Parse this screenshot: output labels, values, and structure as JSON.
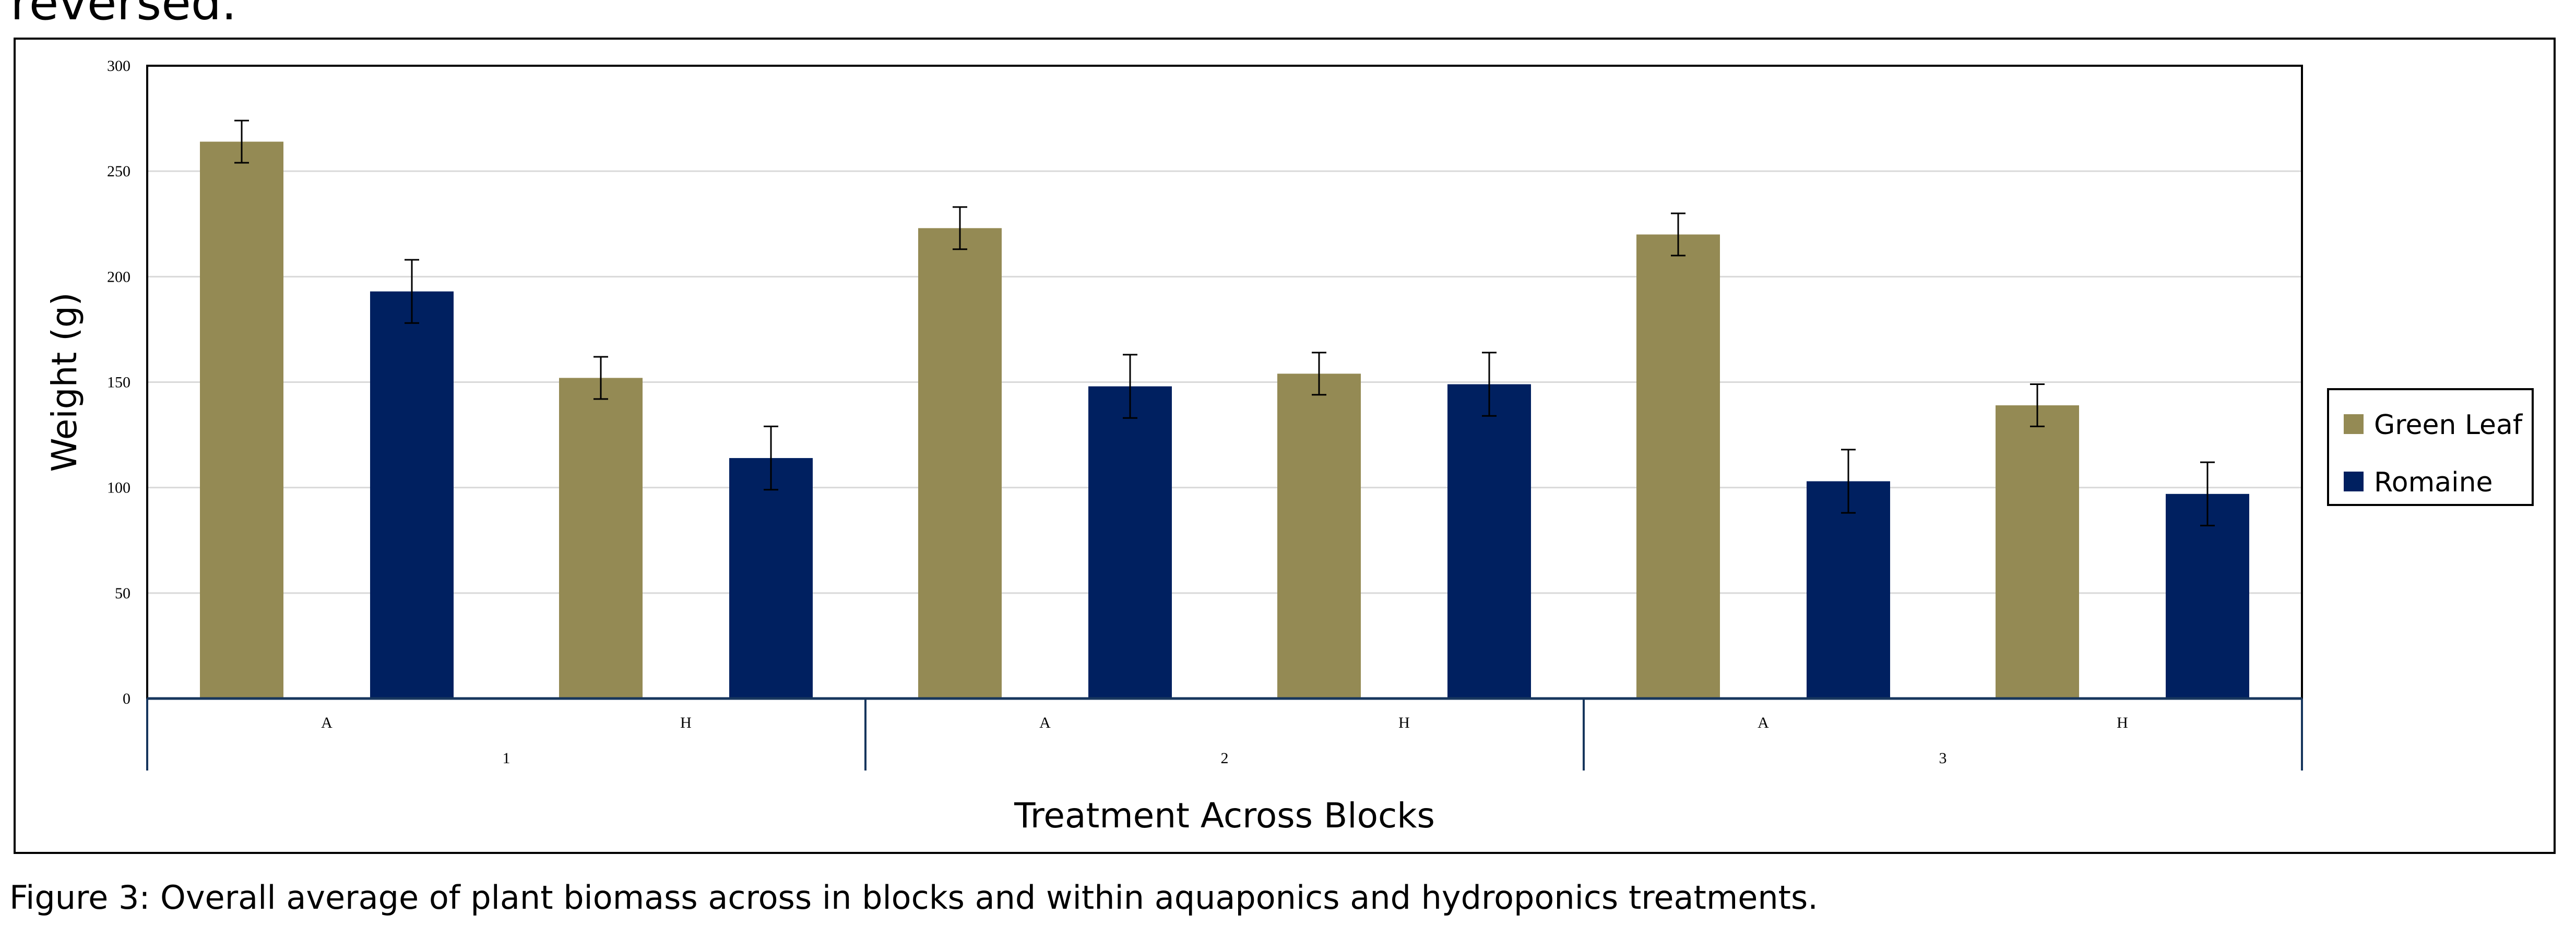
{
  "page": {
    "top_fragment": "reversed.",
    "caption": "Figure 3: Overall average of plant biomass across in blocks and within aquaponics and hydroponics treatments."
  },
  "chart_data": {
    "type": "bar",
    "xlabel": "Treatment Across Blocks",
    "ylabel": "Weight (g)",
    "ylim": [
      0,
      300
    ],
    "yticks": [
      0,
      50,
      100,
      150,
      200,
      250,
      300
    ],
    "grid": true,
    "legend_position": "right",
    "categories": [
      {
        "block": "1",
        "treatment": "A"
      },
      {
        "block": "1",
        "treatment": "H"
      },
      {
        "block": "2",
        "treatment": "A"
      },
      {
        "block": "2",
        "treatment": "H"
      },
      {
        "block": "3",
        "treatment": "A"
      },
      {
        "block": "3",
        "treatment": "H"
      }
    ],
    "blocks": [
      "1",
      "2",
      "3"
    ],
    "series": [
      {
        "name": "Green Leaf",
        "color": "#948A54",
        "values": [
          264,
          152,
          223,
          154,
          220,
          139
        ],
        "errors": [
          10,
          10,
          10,
          10,
          10,
          10
        ]
      },
      {
        "name": "Romaine",
        "color": "#002060",
        "values": [
          193,
          114,
          148,
          149,
          103,
          97
        ],
        "errors": [
          15,
          15,
          15,
          15,
          15,
          15
        ]
      }
    ]
  }
}
